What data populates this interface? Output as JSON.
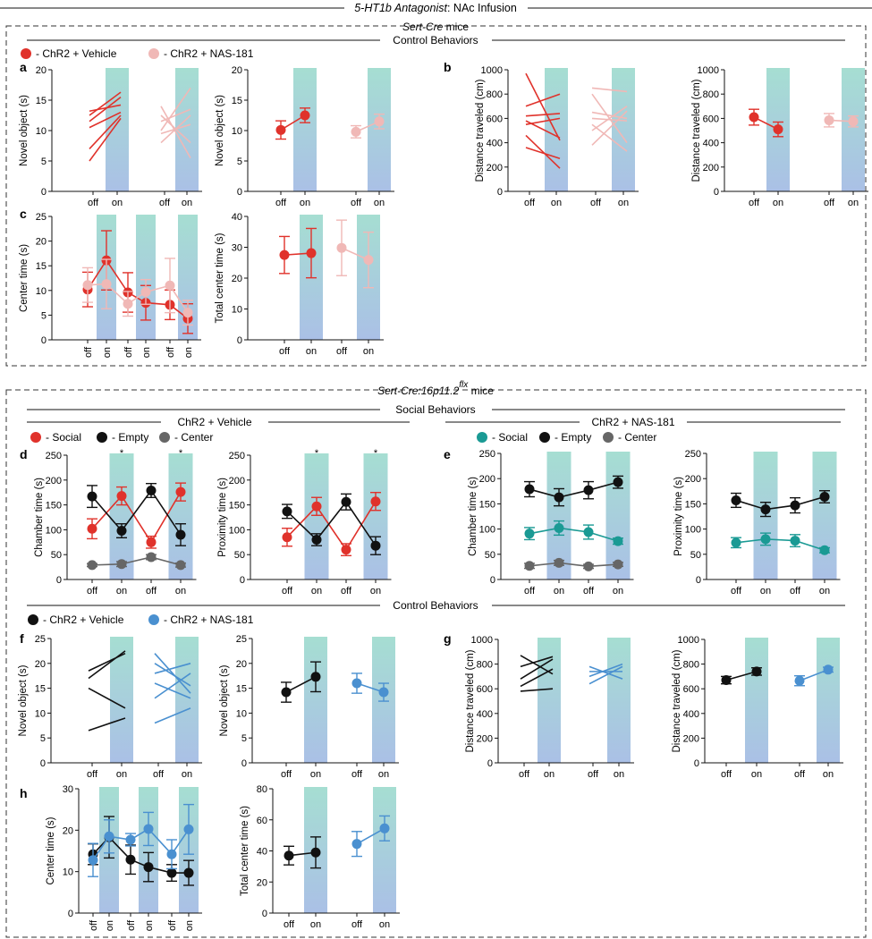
{
  "figure": {
    "title_italic": "5-HT1b Antagonist",
    "title_rest": ": NAc Infusion",
    "section1": {
      "mouse_italic": "Sert-Cre",
      "mouse_rest": " mice",
      "control_label": "Control Behaviors"
    },
    "section2": {
      "mouse_italic": "Sert-Cre:16p11.2",
      "mouse_sup": "flx",
      "mouse_rest": " mice",
      "social_label": "Social Behaviors",
      "control_label": "Control Behaviors",
      "group_vehicle": "ChR2 + Vehicle",
      "group_nas": "ChR2 + NAS-181"
    }
  },
  "legends": {
    "top": [
      {
        "label": "- ChR2 + Vehicle",
        "color": "#e0322b"
      },
      {
        "label": "- ChR2 + NAS-181",
        "color": "#f0b8b6"
      }
    ],
    "social_vehicle": [
      {
        "label": "- Social",
        "color": "#e0322b"
      },
      {
        "label": "- Empty",
        "color": "#111111"
      },
      {
        "label": "- Center",
        "color": "#666666"
      }
    ],
    "social_nas": [
      {
        "label": "- Social",
        "color": "#1a9a94"
      },
      {
        "label": "- Empty",
        "color": "#111111"
      },
      {
        "label": "- Center",
        "color": "#666666"
      }
    ],
    "bottom": [
      {
        "label": "- ChR2 + Vehicle",
        "color": "#111111"
      },
      {
        "label": "- ChR2 + NAS-181",
        "color": "#4a90d0"
      }
    ]
  },
  "chart_data": [
    {
      "id": "a1",
      "panel": "a",
      "type": "line",
      "ylabel": "Novel object (s)",
      "ylim": [
        0,
        20
      ],
      "yticks": [
        0,
        5,
        10,
        15,
        20
      ],
      "xticklabels": [
        "off",
        "on",
        "off",
        "on"
      ],
      "series": [
        {
          "name": "ChR2 + Vehicle",
          "color": "#e0322b",
          "lines": [
            [
              12.5,
              16.3
            ],
            [
              11.5,
              15.5
            ],
            [
              13.2,
              14.2
            ],
            [
              10.5,
              13
            ],
            [
              7,
              12.5
            ],
            [
              5,
              12
            ]
          ]
        },
        {
          "name": "ChR2 + NAS-181",
          "color": "#f0b8b6",
          "lines": [
            [
              12.5,
              8
            ],
            [
              11.5,
              13.5
            ],
            [
              10,
              17
            ],
            [
              9.5,
              11
            ],
            [
              8,
              12.5
            ],
            [
              14,
              5.5
            ]
          ]
        }
      ]
    },
    {
      "id": "a2",
      "panel": "",
      "type": "line",
      "ylabel": "Novel object (s)",
      "ylim": [
        0,
        20
      ],
      "yticks": [
        0,
        5,
        10,
        15,
        20
      ],
      "xticklabels": [
        "off",
        "on",
        "off",
        "on"
      ],
      "series": [
        {
          "name": "ChR2 + Vehicle",
          "color": "#e0322b",
          "mean": [
            10.1,
            12.5
          ],
          "err": [
            1.5,
            1.2
          ]
        },
        {
          "name": "ChR2 + NAS-181",
          "color": "#f0b8b6",
          "mean": [
            9.8,
            11.5
          ],
          "err": [
            1.0,
            1.2
          ]
        }
      ]
    },
    {
      "id": "b1",
      "panel": "b",
      "type": "line",
      "ylabel": "Distance traveled (cm)",
      "ylim": [
        0,
        1000
      ],
      "yticks": [
        0,
        200,
        400,
        600,
        800,
        1000
      ],
      "xticklabels": [
        "off",
        "on",
        "off",
        "on"
      ],
      "series": [
        {
          "name": "ChR2 + Vehicle",
          "color": "#e0322b",
          "lines": [
            [
              970,
              420
            ],
            [
              700,
              800
            ],
            [
              620,
              640
            ],
            [
              580,
              440
            ],
            [
              550,
              600
            ],
            [
              460,
              190
            ],
            [
              360,
              270
            ]
          ]
        },
        {
          "name": "ChR2 + NAS-181",
          "color": "#f0b8b6",
          "lines": [
            [
              850,
              820
            ],
            [
              800,
              400
            ],
            [
              650,
              600
            ],
            [
              600,
              580
            ],
            [
              550,
              330
            ],
            [
              500,
              700
            ],
            [
              380,
              660
            ]
          ]
        }
      ]
    },
    {
      "id": "b2",
      "panel": "",
      "type": "line",
      "ylabel": "Distance traveled (cm)",
      "ylim": [
        0,
        1000
      ],
      "yticks": [
        0,
        200,
        400,
        600,
        800,
        1000
      ],
      "xticklabels": [
        "off",
        "on",
        "off",
        "on"
      ],
      "series": [
        {
          "name": "ChR2 + Vehicle",
          "color": "#e0322b",
          "mean": [
            610,
            510
          ],
          "err": [
            65,
            60
          ]
        },
        {
          "name": "ChR2 + NAS-181",
          "color": "#f0b8b6",
          "mean": [
            585,
            575
          ],
          "err": [
            55,
            45
          ]
        }
      ]
    },
    {
      "id": "c1",
      "panel": "c",
      "type": "line",
      "ylabel": "Center time (s)",
      "ylim": [
        0,
        25
      ],
      "yticks": [
        0,
        5,
        10,
        15,
        20,
        25
      ],
      "xticklabels": [
        "off",
        "on",
        "off",
        "on",
        "off",
        "on"
      ],
      "series": [
        {
          "name": "ChR2 + Vehicle",
          "color": "#e0322b",
          "mean": [
            10.2,
            16.1,
            9.6,
            7.5,
            7.1,
            4.3
          ],
          "err": [
            3.5,
            6,
            4,
            3.5,
            3,
            3
          ]
        },
        {
          "name": "ChR2 + NAS-181",
          "color": "#f0b8b6",
          "mean": [
            11.1,
            11.3,
            7.3,
            9.7,
            11,
            5.5
          ],
          "err": [
            3.5,
            5,
            2.5,
            2.5,
            5.5,
            2.5
          ]
        }
      ]
    },
    {
      "id": "c2",
      "panel": "",
      "type": "line",
      "ylabel": "Total center time (s)",
      "ylim": [
        0,
        40
      ],
      "yticks": [
        0,
        10,
        20,
        30,
        40
      ],
      "xticklabels": [
        "off",
        "on",
        "off",
        "on"
      ],
      "series": [
        {
          "name": "ChR2 + Vehicle",
          "color": "#e0322b",
          "mean": [
            27.5,
            28.1
          ],
          "err": [
            6,
            8
          ]
        },
        {
          "name": "ChR2 + NAS-181",
          "color": "#f0b8b6",
          "mean": [
            29.8,
            25.9
          ],
          "err": [
            9,
            9
          ]
        }
      ]
    },
    {
      "id": "d1",
      "panel": "d",
      "type": "line",
      "ylabel": "Chamber time (s)",
      "ylim": [
        0,
        250
      ],
      "yticks": [
        0,
        50,
        100,
        150,
        200,
        250
      ],
      "xticklabels": [
        "off",
        "on",
        "off",
        "on"
      ],
      "sig": [
        "",
        "*",
        "",
        "*"
      ],
      "series": [
        {
          "name": "Social",
          "color": "#e0322b",
          "mean": [
            102,
            168,
            75,
            176
          ],
          "err": [
            20,
            18,
            12,
            18
          ]
        },
        {
          "name": "Empty",
          "color": "#111111",
          "mean": [
            167,
            98,
            179,
            90
          ],
          "err": [
            22,
            14,
            14,
            22
          ]
        },
        {
          "name": "Center",
          "color": "#666666",
          "mean": [
            29,
            31,
            45,
            29
          ],
          "err": [
            3,
            5,
            5,
            4
          ]
        }
      ]
    },
    {
      "id": "d2",
      "panel": "",
      "type": "line",
      "ylabel": "Proximity time (s)",
      "ylim": [
        0,
        250
      ],
      "yticks": [
        0,
        50,
        100,
        150,
        200,
        250
      ],
      "xticklabels": [
        "off",
        "on",
        "off",
        "on"
      ],
      "sig": [
        "",
        "*",
        "",
        "*"
      ],
      "series": [
        {
          "name": "Social",
          "color": "#e0322b",
          "mean": [
            85,
            147,
            60,
            157
          ],
          "err": [
            18,
            18,
            12,
            18
          ]
        },
        {
          "name": "Empty",
          "color": "#111111",
          "mean": [
            137,
            80,
            156,
            68
          ],
          "err": [
            14,
            12,
            16,
            18
          ]
        }
      ]
    },
    {
      "id": "e1",
      "panel": "e",
      "type": "line",
      "ylabel": "Chamber time (s)",
      "ylim": [
        0,
        250
      ],
      "yticks": [
        0,
        50,
        100,
        150,
        200,
        250
      ],
      "xticklabels": [
        "off",
        "on",
        "off",
        "on"
      ],
      "series": [
        {
          "name": "Social",
          "color": "#1a9a94",
          "mean": [
            91,
            102,
            94,
            76
          ],
          "err": [
            12,
            14,
            14,
            6
          ]
        },
        {
          "name": "Empty",
          "color": "#111111",
          "mean": [
            179,
            163,
            177,
            193
          ],
          "err": [
            15,
            17,
            17,
            12
          ]
        },
        {
          "name": "Center",
          "color": "#666666",
          "mean": [
            27,
            33,
            26,
            30
          ],
          "err": [
            5,
            5,
            4,
            4
          ]
        }
      ]
    },
    {
      "id": "e2",
      "panel": "",
      "type": "line",
      "ylabel": "Proximity time (s)",
      "ylim": [
        0,
        250
      ],
      "yticks": [
        0,
        50,
        100,
        150,
        200,
        250
      ],
      "xticklabels": [
        "off",
        "on",
        "off",
        "on"
      ],
      "series": [
        {
          "name": "Social",
          "color": "#1a9a94",
          "mean": [
            73,
            80,
            77,
            58
          ],
          "err": [
            10,
            12,
            12,
            5
          ]
        },
        {
          "name": "Empty",
          "color": "#111111",
          "mean": [
            157,
            139,
            147,
            164
          ],
          "err": [
            14,
            14,
            15,
            12
          ]
        }
      ]
    },
    {
      "id": "f1",
      "panel": "f",
      "type": "line",
      "ylabel": "Novel object (s)",
      "ylim": [
        0,
        25
      ],
      "yticks": [
        0,
        5,
        10,
        15,
        20,
        25
      ],
      "xticklabels": [
        "off",
        "on",
        "off",
        "on"
      ],
      "series": [
        {
          "name": "ChR2 + Vehicle",
          "color": "#111111",
          "lines": [
            [
              17,
              22.5
            ],
            [
              18.5,
              22
            ],
            [
              15,
              11
            ],
            [
              6.5,
              9
            ]
          ]
        },
        {
          "name": "ChR2 + NAS-181",
          "color": "#4a90d0",
          "lines": [
            [
              22,
              14
            ],
            [
              20,
              15.5
            ],
            [
              18,
              20
            ],
            [
              16,
              13
            ],
            [
              13,
              18
            ],
            [
              8,
              11
            ]
          ]
        }
      ]
    },
    {
      "id": "f2",
      "panel": "",
      "type": "line",
      "ylabel": "Novel object (s)",
      "ylim": [
        0,
        25
      ],
      "yticks": [
        0,
        5,
        10,
        15,
        20,
        25
      ],
      "xticklabels": [
        "off",
        "on",
        "off",
        "on"
      ],
      "series": [
        {
          "name": "ChR2 + Vehicle",
          "color": "#111111",
          "mean": [
            14.2,
            17.3
          ],
          "err": [
            2,
            3
          ]
        },
        {
          "name": "ChR2 + NAS-181",
          "color": "#4a90d0",
          "mean": [
            16,
            14.2
          ],
          "err": [
            2,
            1.8
          ]
        }
      ]
    },
    {
      "id": "g1",
      "panel": "g",
      "type": "line",
      "ylabel": "Distance traveled (cm)",
      "ylim": [
        0,
        1000
      ],
      "yticks": [
        0,
        200,
        400,
        600,
        800,
        1000
      ],
      "xticklabels": [
        "off",
        "on",
        "off",
        "on"
      ],
      "series": [
        {
          "name": "ChR2 + Vehicle",
          "color": "#111111",
          "lines": [
            [
              870,
              720
            ],
            [
              780,
              860
            ],
            [
              680,
              840
            ],
            [
              620,
              760
            ],
            [
              580,
              600
            ]
          ]
        },
        {
          "name": "ChR2 + NAS-181",
          "color": "#4a90d0",
          "lines": [
            [
              780,
              680
            ],
            [
              740,
              740
            ],
            [
              700,
              800
            ],
            [
              640,
              780
            ]
          ]
        }
      ]
    },
    {
      "id": "g2",
      "panel": "",
      "type": "line",
      "ylabel": "Distance traveled (cm)",
      "ylim": [
        0,
        1000
      ],
      "yticks": [
        0,
        200,
        400,
        600,
        800,
        1000
      ],
      "xticklabels": [
        "off",
        "on",
        "off",
        "on"
      ],
      "series": [
        {
          "name": "ChR2 + Vehicle",
          "color": "#111111",
          "mean": [
            670,
            740
          ],
          "err": [
            30,
            30
          ]
        },
        {
          "name": "ChR2 + NAS-181",
          "color": "#4a90d0",
          "mean": [
            665,
            755
          ],
          "err": [
            40,
            20
          ]
        }
      ]
    },
    {
      "id": "h1",
      "panel": "h",
      "type": "line",
      "ylabel": "Center time (s)",
      "ylim": [
        0,
        30
      ],
      "yticks": [
        0,
        10,
        20,
        30
      ],
      "xticklabels": [
        "off",
        "on",
        "off",
        "on",
        "off",
        "on"
      ],
      "series": [
        {
          "name": "ChR2 + Vehicle",
          "color": "#111111",
          "mean": [
            14.2,
            18.3,
            12.9,
            11.1,
            9.7,
            9.7
          ],
          "err": [
            2.5,
            5,
            3.5,
            3.5,
            2,
            3
          ]
        },
        {
          "name": "ChR2 + NAS-181",
          "color": "#4a90d0",
          "mean": [
            12.8,
            18.5,
            17.7,
            20.3,
            14.2,
            20.2
          ],
          "err": [
            4,
            4,
            1.5,
            4,
            3.5,
            6
          ]
        }
      ]
    },
    {
      "id": "h2",
      "panel": "",
      "type": "line",
      "ylabel": "Total center time (s)",
      "ylim": [
        0,
        80
      ],
      "yticks": [
        0,
        20,
        40,
        60,
        80
      ],
      "xticklabels": [
        "off",
        "on",
        "off",
        "on"
      ],
      "series": [
        {
          "name": "ChR2 + Vehicle",
          "color": "#111111",
          "mean": [
            37,
            39
          ],
          "err": [
            6,
            10
          ]
        },
        {
          "name": "ChR2 + NAS-181",
          "color": "#4a90d0",
          "mean": [
            44.5,
            54.5
          ],
          "err": [
            8,
            8
          ]
        }
      ]
    }
  ]
}
